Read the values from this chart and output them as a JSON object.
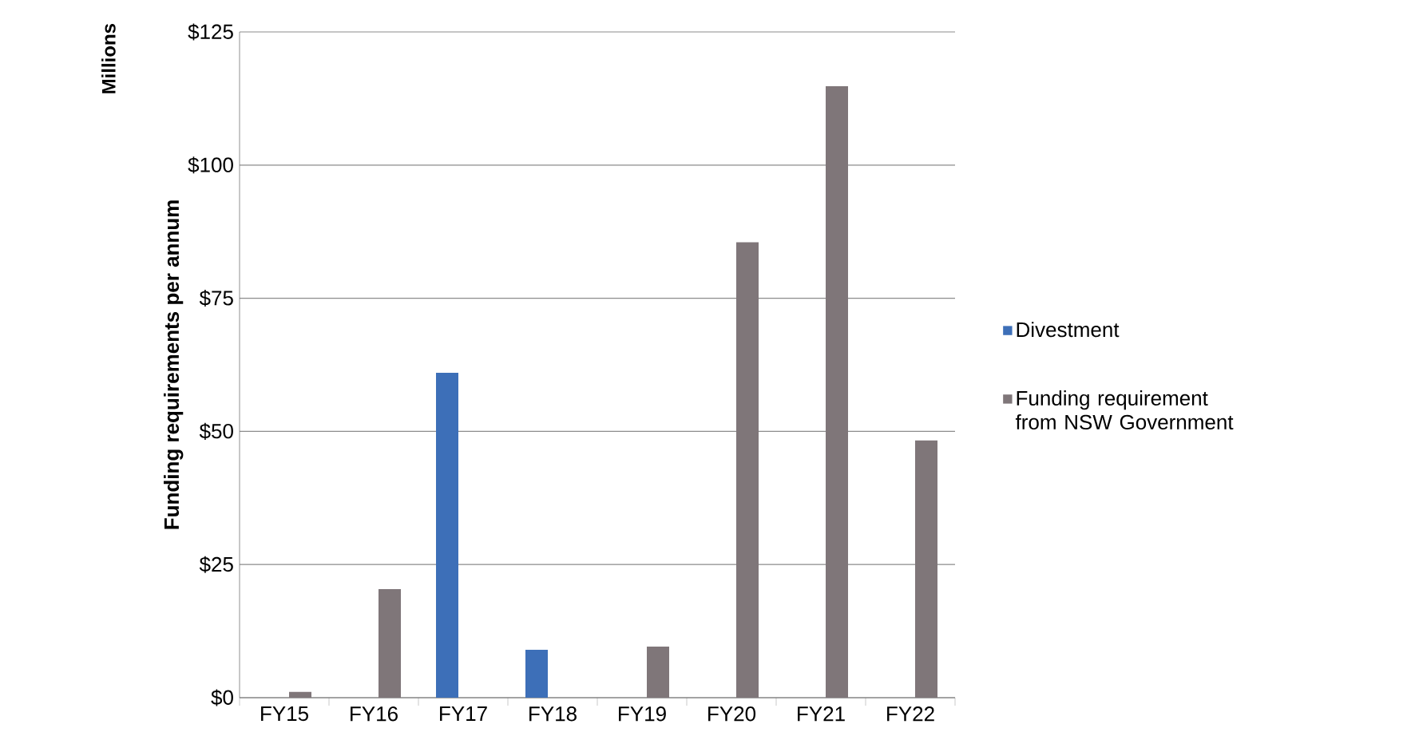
{
  "chart_data": {
    "type": "bar",
    "ylabel": "Funding requirements per annum",
    "annotations": [
      "Millions"
    ],
    "categories": [
      "FY15",
      "FY16",
      "FY17",
      "FY18",
      "FY19",
      "FY20",
      "FY21",
      "FY22"
    ],
    "series": [
      {
        "name": "Divestment",
        "color": "#3d6fb8",
        "values": [
          null,
          null,
          61,
          9,
          null,
          null,
          null,
          null
        ]
      },
      {
        "name": "Funding requirement from NSW Government",
        "color": "#7f7679",
        "values": [
          1.1,
          20.4,
          null,
          null,
          9.6,
          85.5,
          114.8,
          48.3
        ]
      }
    ],
    "ylim": [
      0,
      125
    ],
    "yticks": [
      {
        "value": 0,
        "label": "$0"
      },
      {
        "value": 25,
        "label": "$25"
      },
      {
        "value": 50,
        "label": "$50"
      },
      {
        "value": 75,
        "label": "$75"
      },
      {
        "value": 100,
        "label": "$100"
      },
      {
        "value": 125,
        "label": "$125"
      }
    ],
    "grid": "y",
    "legend": "right"
  }
}
